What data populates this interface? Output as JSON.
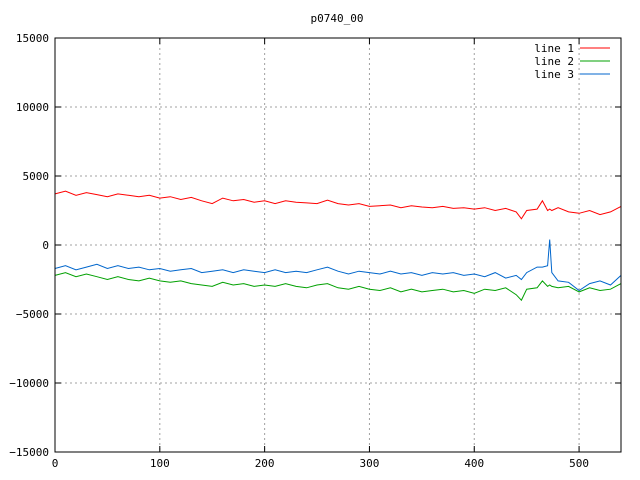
{
  "chart_data": {
    "type": "line",
    "title": "p0740_00",
    "xlabel": "",
    "ylabel": "",
    "xlim": [
      0,
      540
    ],
    "ylim": [
      -15000,
      15000
    ],
    "x_ticks": [
      0,
      100,
      200,
      300,
      400,
      500
    ],
    "y_ticks": [
      -15000,
      -10000,
      -5000,
      0,
      5000,
      10000,
      15000
    ],
    "x_tick_labels": [
      "0",
      "100",
      "200",
      "300",
      "400",
      "500"
    ],
    "y_tick_labels": [
      "−15000",
      "−10000",
      "−5000",
      "0",
      "5000",
      "10000",
      "15000"
    ],
    "grid": true,
    "legend_position": "top-right",
    "x": [
      0,
      10,
      20,
      30,
      40,
      50,
      60,
      70,
      80,
      90,
      100,
      110,
      120,
      130,
      140,
      150,
      160,
      170,
      180,
      190,
      200,
      210,
      220,
      230,
      240,
      250,
      260,
      270,
      280,
      290,
      300,
      310,
      320,
      330,
      340,
      350,
      360,
      370,
      380,
      390,
      400,
      410,
      420,
      430,
      440,
      445,
      450,
      460,
      465,
      470,
      472,
      474,
      480,
      490,
      500,
      510,
      520,
      530,
      540
    ],
    "series": [
      {
        "name": "line 1",
        "color": "#ff0000",
        "values": [
          3700,
          3900,
          3600,
          3800,
          3650,
          3500,
          3700,
          3600,
          3500,
          3600,
          3400,
          3500,
          3300,
          3450,
          3200,
          3000,
          3400,
          3200,
          3300,
          3100,
          3200,
          3000,
          3200,
          3100,
          3050,
          3000,
          3250,
          3000,
          2900,
          3000,
          2800,
          2850,
          2900,
          2700,
          2850,
          2750,
          2700,
          2800,
          2650,
          2700,
          2600,
          2700,
          2500,
          2650,
          2400,
          1900,
          2500,
          2600,
          3200,
          2500,
          2600,
          2500,
          2700,
          2400,
          2300,
          2500,
          2200,
          2400,
          2800
        ]
      },
      {
        "name": "line 2",
        "color": "#00a000",
        "values": [
          -2200,
          -2000,
          -2300,
          -2100,
          -2300,
          -2500,
          -2300,
          -2500,
          -2600,
          -2400,
          -2600,
          -2700,
          -2600,
          -2800,
          -2900,
          -3000,
          -2700,
          -2900,
          -2800,
          -3000,
          -2900,
          -3000,
          -2800,
          -3000,
          -3100,
          -2900,
          -2800,
          -3100,
          -3200,
          -3000,
          -3200,
          -3300,
          -3100,
          -3400,
          -3200,
          -3400,
          -3300,
          -3200,
          -3400,
          -3300,
          -3500,
          -3200,
          -3300,
          -3100,
          -3600,
          -4000,
          -3200,
          -3100,
          -2600,
          -3000,
          -2900,
          -3000,
          -3100,
          -3000,
          -3400,
          -3100,
          -3300,
          -3200,
          -2800
        ]
      },
      {
        "name": "line 3",
        "color": "#0066cc",
        "values": [
          -1700,
          -1500,
          -1800,
          -1600,
          -1400,
          -1700,
          -1500,
          -1700,
          -1600,
          -1800,
          -1700,
          -1900,
          -1800,
          -1700,
          -2000,
          -1900,
          -1800,
          -2000,
          -1800,
          -1900,
          -2000,
          -1800,
          -2000,
          -1900,
          -2000,
          -1800,
          -1600,
          -1900,
          -2100,
          -1900,
          -2000,
          -2100,
          -1900,
          -2100,
          -2000,
          -2200,
          -2000,
          -2100,
          -2000,
          -2200,
          -2100,
          -2300,
          -2000,
          -2400,
          -2200,
          -2500,
          -2000,
          -1600,
          -1600,
          -1500,
          400,
          -2000,
          -2600,
          -2700,
          -3300,
          -2800,
          -2600,
          -2900,
          -2200
        ]
      }
    ]
  }
}
